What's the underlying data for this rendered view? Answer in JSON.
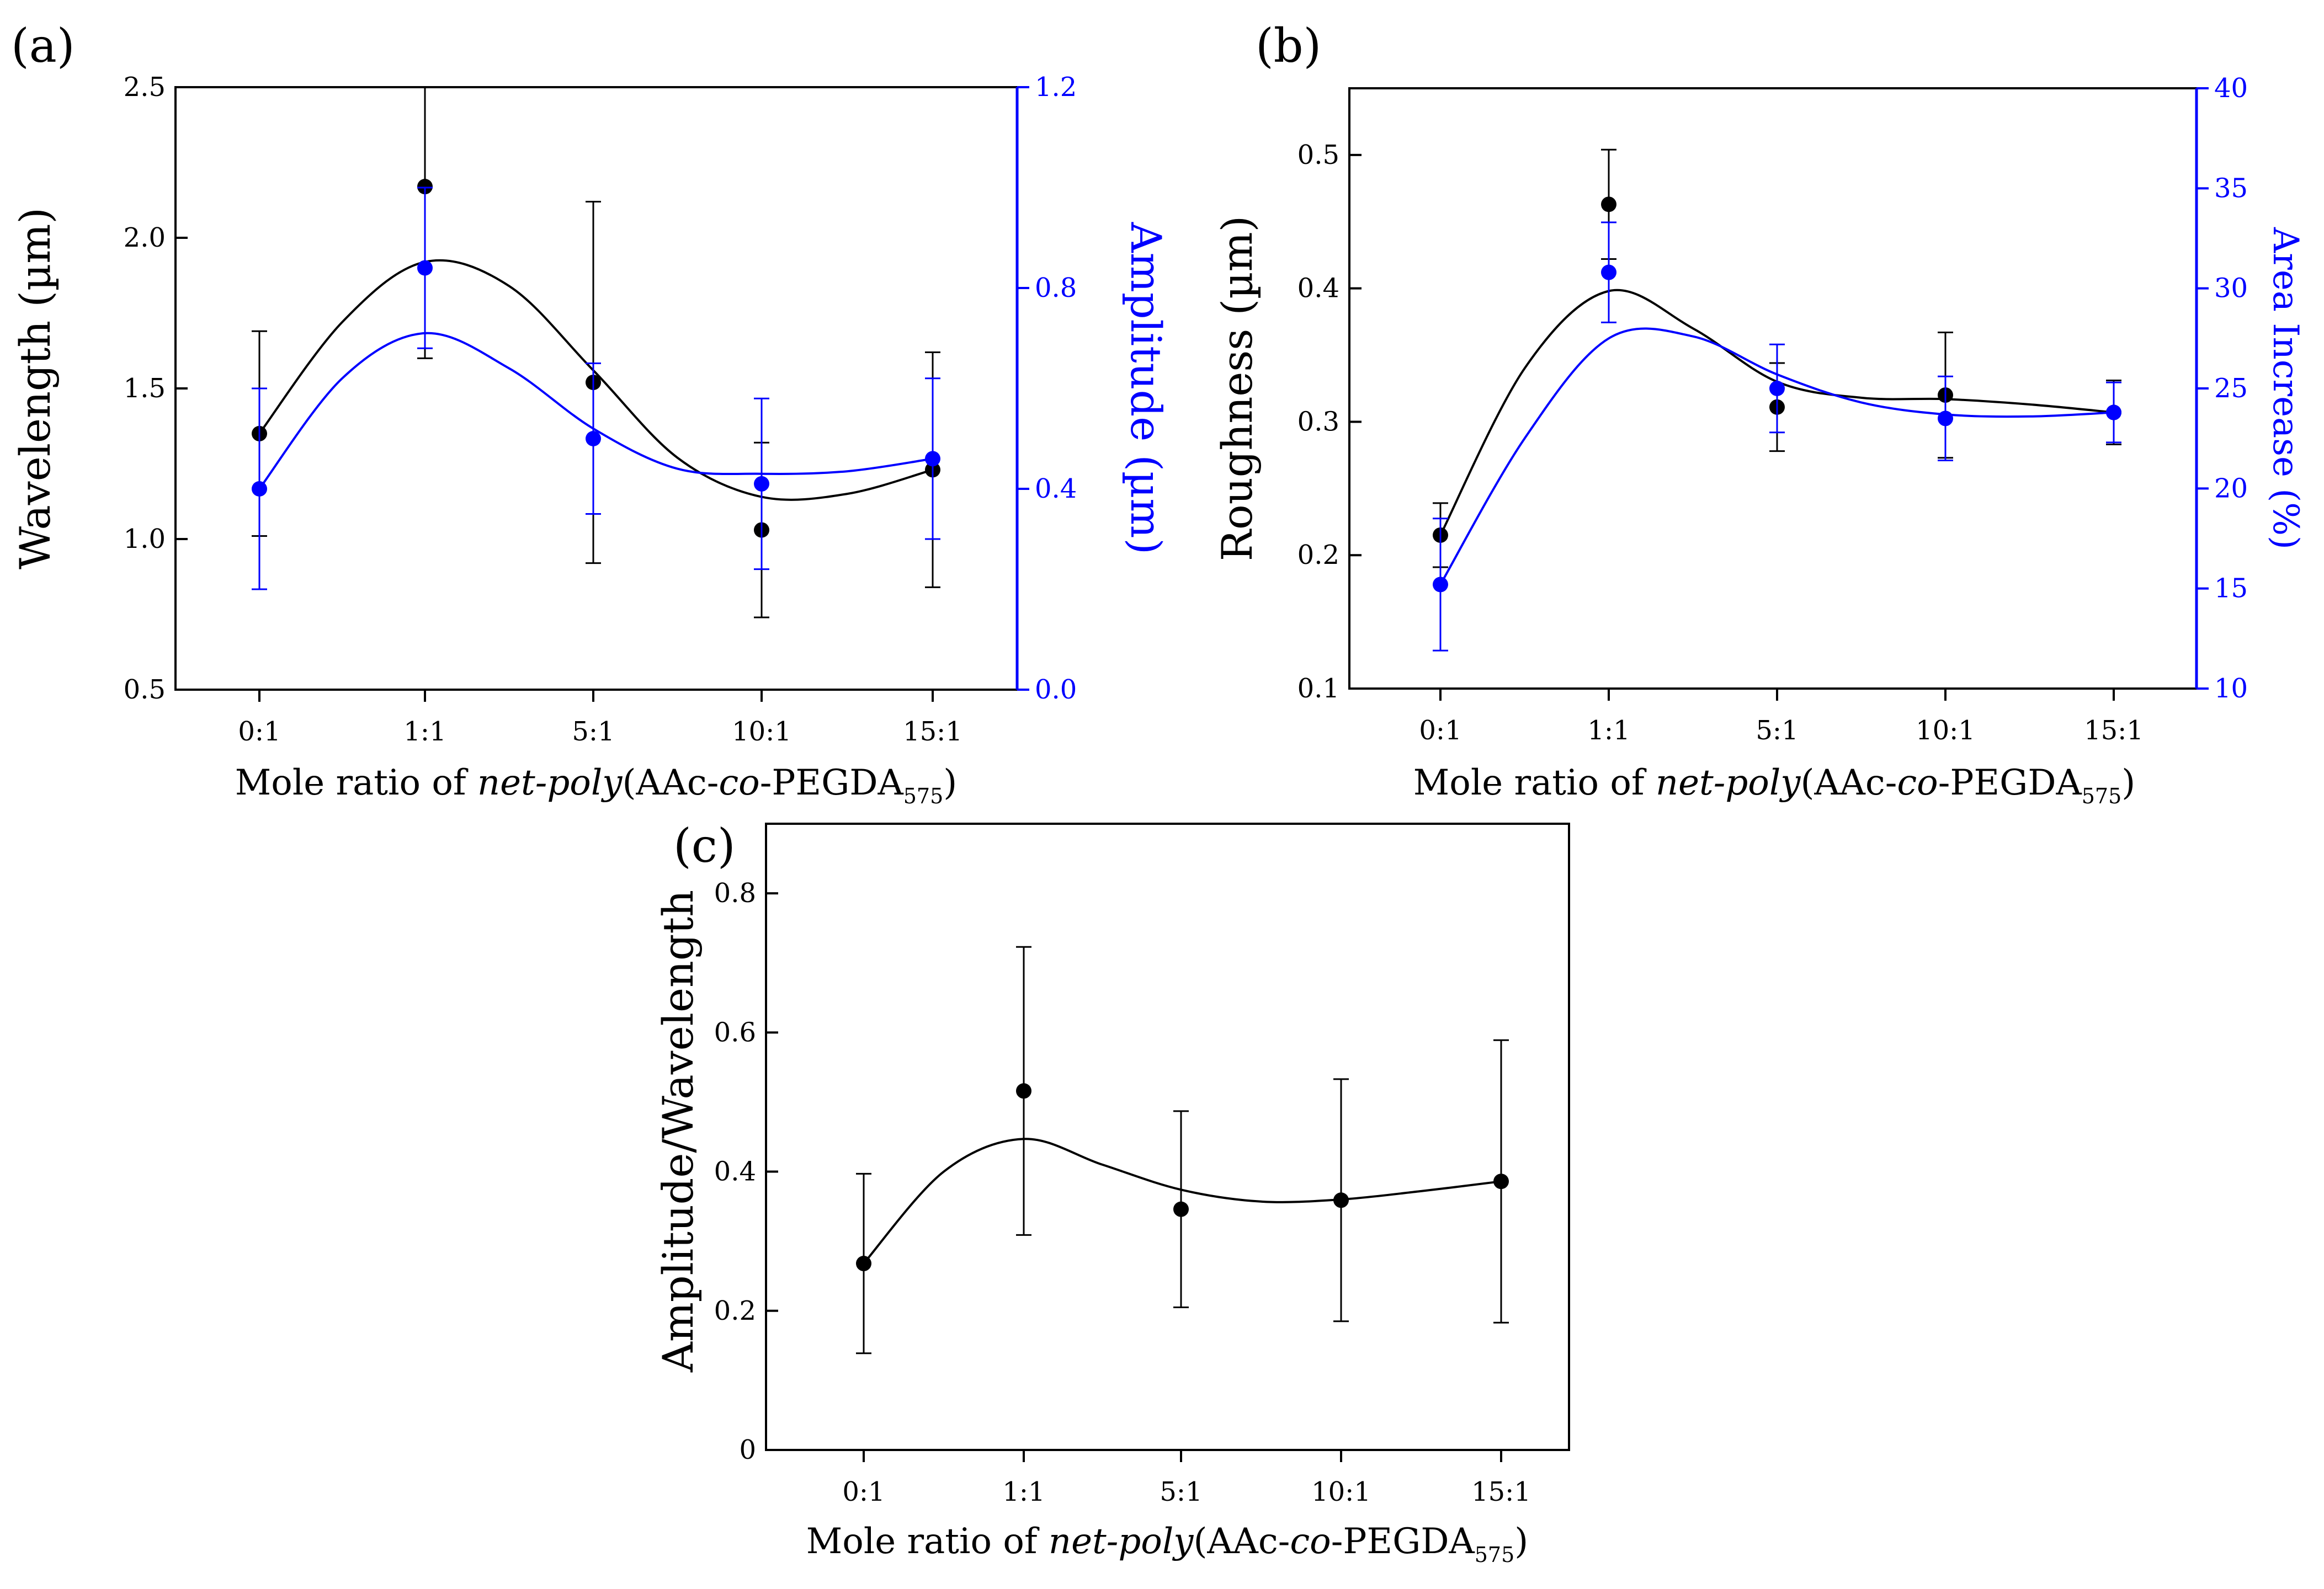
{
  "colors": {
    "black": "#000000",
    "blue": "#0000ff"
  },
  "chart_data": [
    {
      "panel_label": "(a)",
      "type": "scatter",
      "categories": [
        "0:1",
        "1:1",
        "5:1",
        "10:1",
        "15:1"
      ],
      "xlabel": {
        "prefix": "Mole ratio of ",
        "italic": "net-poly",
        "mid1": "(AAc-",
        "co": "co",
        "mid2": "-PEGDA",
        "sub": "575",
        "suffix": ")"
      },
      "ylabel_left": "Wavelength (µm)",
      "ylabel_right": "Amplitude (µm)",
      "ylim_left": [
        0.5,
        2.5
      ],
      "ylim_right": [
        0.0,
        1.2
      ],
      "yticks_left": [
        "0.5",
        "1.0",
        "1.5",
        "2.0",
        "2.5"
      ],
      "yticks_right": [
        "0.0",
        "0.4",
        "0.8",
        "1.2"
      ],
      "series": [
        {
          "name": "Wavelength",
          "axis": "left",
          "color": "#000000",
          "values": [
            1.35,
            2.17,
            1.52,
            1.03,
            1.23
          ],
          "errors": [
            0.34,
            0.57,
            0.6,
            0.29,
            0.39
          ],
          "fit": [
            [
              0,
              1.35
            ],
            [
              0.5,
              1.72
            ],
            [
              1,
              1.92
            ],
            [
              1.5,
              1.84
            ],
            [
              2,
              1.56
            ],
            [
              2.5,
              1.27
            ],
            [
              3,
              1.14
            ],
            [
              3.5,
              1.15
            ],
            [
              4,
              1.23
            ]
          ]
        },
        {
          "name": "Amplitude",
          "axis": "right",
          "color": "#0000ff",
          "values": [
            0.4,
            0.84,
            0.5,
            0.41,
            0.46
          ],
          "errors": [
            0.2,
            0.16,
            0.15,
            0.17,
            0.16
          ],
          "fit": [
            [
              0,
              0.4
            ],
            [
              0.5,
              0.62
            ],
            [
              1,
              0.71
            ],
            [
              1.5,
              0.64
            ],
            [
              2,
              0.52
            ],
            [
              2.5,
              0.44
            ],
            [
              3,
              0.43
            ],
            [
              3.5,
              0.435
            ],
            [
              4,
              0.46
            ]
          ]
        }
      ]
    },
    {
      "panel_label": "(b)",
      "type": "scatter",
      "categories": [
        "0:1",
        "1:1",
        "5:1",
        "10:1",
        "15:1"
      ],
      "xlabel": {
        "prefix": "Mole ratio of ",
        "italic": "net-poly",
        "mid1": "(AAc-",
        "co": "co",
        "mid2": "-PEGDA",
        "sub": "575",
        "suffix": ")"
      },
      "ylabel_left": "Roughness (µm)",
      "ylabel_right": "Area Increase (%)",
      "ylim_left": [
        0.1,
        0.55
      ],
      "ylim_right": [
        10,
        40
      ],
      "yticks_left": [
        "0.1",
        "0.2",
        "0.3",
        "0.4",
        "0.5"
      ],
      "yticks_right": [
        "10",
        "15",
        "20",
        "25",
        "30",
        "35",
        "40"
      ],
      "series": [
        {
          "name": "Roughness",
          "axis": "left",
          "color": "#000000",
          "values": [
            0.215,
            0.463,
            0.311,
            0.32,
            0.307
          ],
          "errors": [
            0.024,
            0.041,
            0.033,
            0.047,
            0.024
          ],
          "fit": [
            [
              0,
              0.215
            ],
            [
              0.5,
              0.34
            ],
            [
              1,
              0.398
            ],
            [
              1.5,
              0.37
            ],
            [
              2,
              0.33
            ],
            [
              2.5,
              0.318
            ],
            [
              3,
              0.317
            ],
            [
              3.5,
              0.313
            ],
            [
              4,
              0.307
            ]
          ]
        },
        {
          "name": "Area Increase",
          "axis": "right",
          "color": "#0000ff",
          "values": [
            15.2,
            30.8,
            25.0,
            23.5,
            23.8
          ],
          "errors": [
            3.3,
            2.5,
            2.2,
            2.1,
            1.5
          ],
          "fit": [
            [
              0,
              15.2
            ],
            [
              0.5,
              22.5
            ],
            [
              1,
              27.5
            ],
            [
              1.5,
              27.6
            ],
            [
              2,
              25.7
            ],
            [
              2.5,
              24.3
            ],
            [
              3,
              23.7
            ],
            [
              3.5,
              23.6
            ],
            [
              4,
              23.8
            ]
          ]
        }
      ]
    },
    {
      "panel_label": "(c)",
      "type": "scatter",
      "categories": [
        "0:1",
        "1:1",
        "5:1",
        "10:1",
        "15:1"
      ],
      "xlabel": {
        "prefix": "Mole ratio of ",
        "italic": "net-poly",
        "mid1": "(AAc-",
        "co": "co",
        "mid2": "-PEGDA",
        "sub": "575",
        "suffix": ")"
      },
      "ylabel_left": "Amplitude/Wavelength",
      "ylim_left": [
        0,
        0.9
      ],
      "yticks_left": [
        "0",
        "0.2",
        "0.4",
        "0.6",
        "0.8"
      ],
      "series": [
        {
          "name": "Amplitude/Wavelength",
          "axis": "left",
          "color": "#000000",
          "values": [
            0.268,
            0.516,
            0.346,
            0.359,
            0.386
          ],
          "errors": [
            0.129,
            0.207,
            0.141,
            0.174,
            0.203
          ],
          "fit": [
            [
              0,
              0.268
            ],
            [
              0.5,
              0.4
            ],
            [
              1,
              0.447
            ],
            [
              1.5,
              0.41
            ],
            [
              2,
              0.374
            ],
            [
              2.5,
              0.357
            ],
            [
              3,
              0.36
            ],
            [
              3.5,
              0.372
            ],
            [
              4,
              0.386
            ]
          ]
        }
      ]
    }
  ]
}
